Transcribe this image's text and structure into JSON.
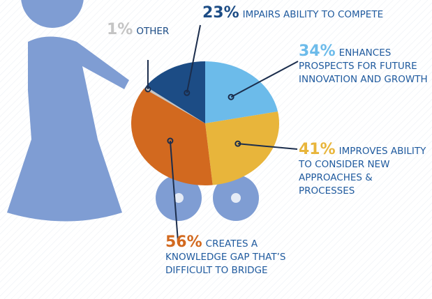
{
  "chart_data": {
    "type": "pie",
    "categories": [
      "ENHANCES PROSPECTS FOR FUTURE INNOVATION AND GROWTH",
      "IMPROVES ABILITY TO CONSIDER NEW APPROACHES & PROCESSES",
      "CREATES A KNOWLEDGE GAP THAT’S DIFFICULT TO BRIDGE",
      "OTHER",
      "IMPAIRS ABILITY TO COMPETE"
    ],
    "values": [
      34,
      41,
      56,
      1,
      23
    ],
    "value_labels": [
      "34%",
      "41%",
      "56%",
      "1%",
      "23%"
    ],
    "colors": [
      "#6cbbea",
      "#e8b53b",
      "#d2691f",
      "#c4c4c4",
      "#1c4c85"
    ]
  }
}
